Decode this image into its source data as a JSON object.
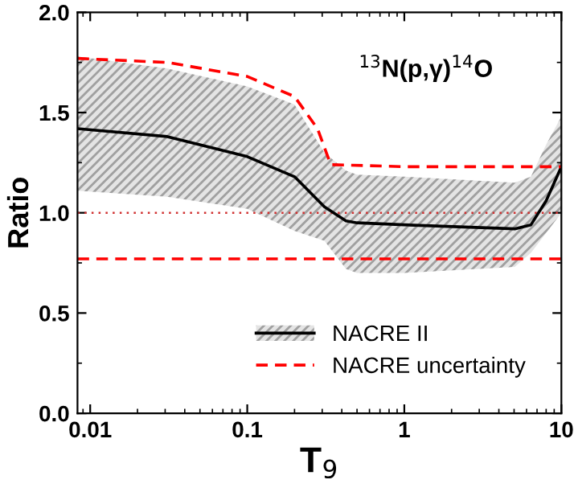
{
  "chart_data": {
    "type": "line",
    "xlabel": "T$_{9}$",
    "ylabel": "Ratio",
    "annotations": [
      "$^{13}$N(p,γ)$^{14}$O"
    ],
    "log": "x",
    "xlim": [
      0.0083,
      10
    ],
    "xticks": [
      0.01,
      0.1,
      1,
      10
    ],
    "ylim": [
      0,
      2.0
    ],
    "yticks": [
      {
        "value": 0,
        "label": "0.0"
      },
      0.5,
      {
        "value": 1,
        "label": "1.0"
      },
      1.5,
      {
        "value": 2,
        "label": "2.0"
      }
    ],
    "grid": false,
    "legend": "bottom right",
    "ref_lines": [
      {
        "axis": "y",
        "value": 1.0,
        "color": "#d03030",
        "line_style": "dotted"
      }
    ],
    "series": [
      {
        "name": "NACRE II",
        "color": "#000000",
        "line_style": "solid",
        "x": [
          0.0083,
          0.031,
          0.1,
          0.2,
          0.31,
          0.425,
          0.5,
          1,
          5.05,
          6.4,
          8,
          10
        ],
        "values": [
          1.42,
          1.38,
          1.28,
          1.18,
          1.03,
          0.96,
          0.95,
          0.94,
          0.92,
          0.94,
          1.06,
          1.23
        ],
        "lower": [
          1.11,
          1.08,
          1.02,
          0.91,
          0.86,
          0.72,
          0.7,
          0.7,
          0.73,
          0.8,
          0.9,
          1.0
        ],
        "upper": [
          1.78,
          1.72,
          1.63,
          1.54,
          1.3,
          1.21,
          1.19,
          1.18,
          1.15,
          1.18,
          1.34,
          1.48
        ]
      },
      {
        "name": "NACRE uncertainty",
        "color": "#ff0000",
        "line_style": "dashed",
        "x": [
          0.0083,
          0.031,
          0.1,
          0.2,
          0.28,
          0.34,
          1,
          10
        ],
        "values": [
          1.77,
          1.75,
          1.68,
          1.58,
          1.42,
          1.24,
          1.23,
          1.23
        ]
      },
      {
        "color": "#ff0000",
        "line_style": "dashed",
        "x": [
          0.0083,
          10
        ],
        "values": [
          0.77,
          0.77
        ]
      }
    ]
  }
}
